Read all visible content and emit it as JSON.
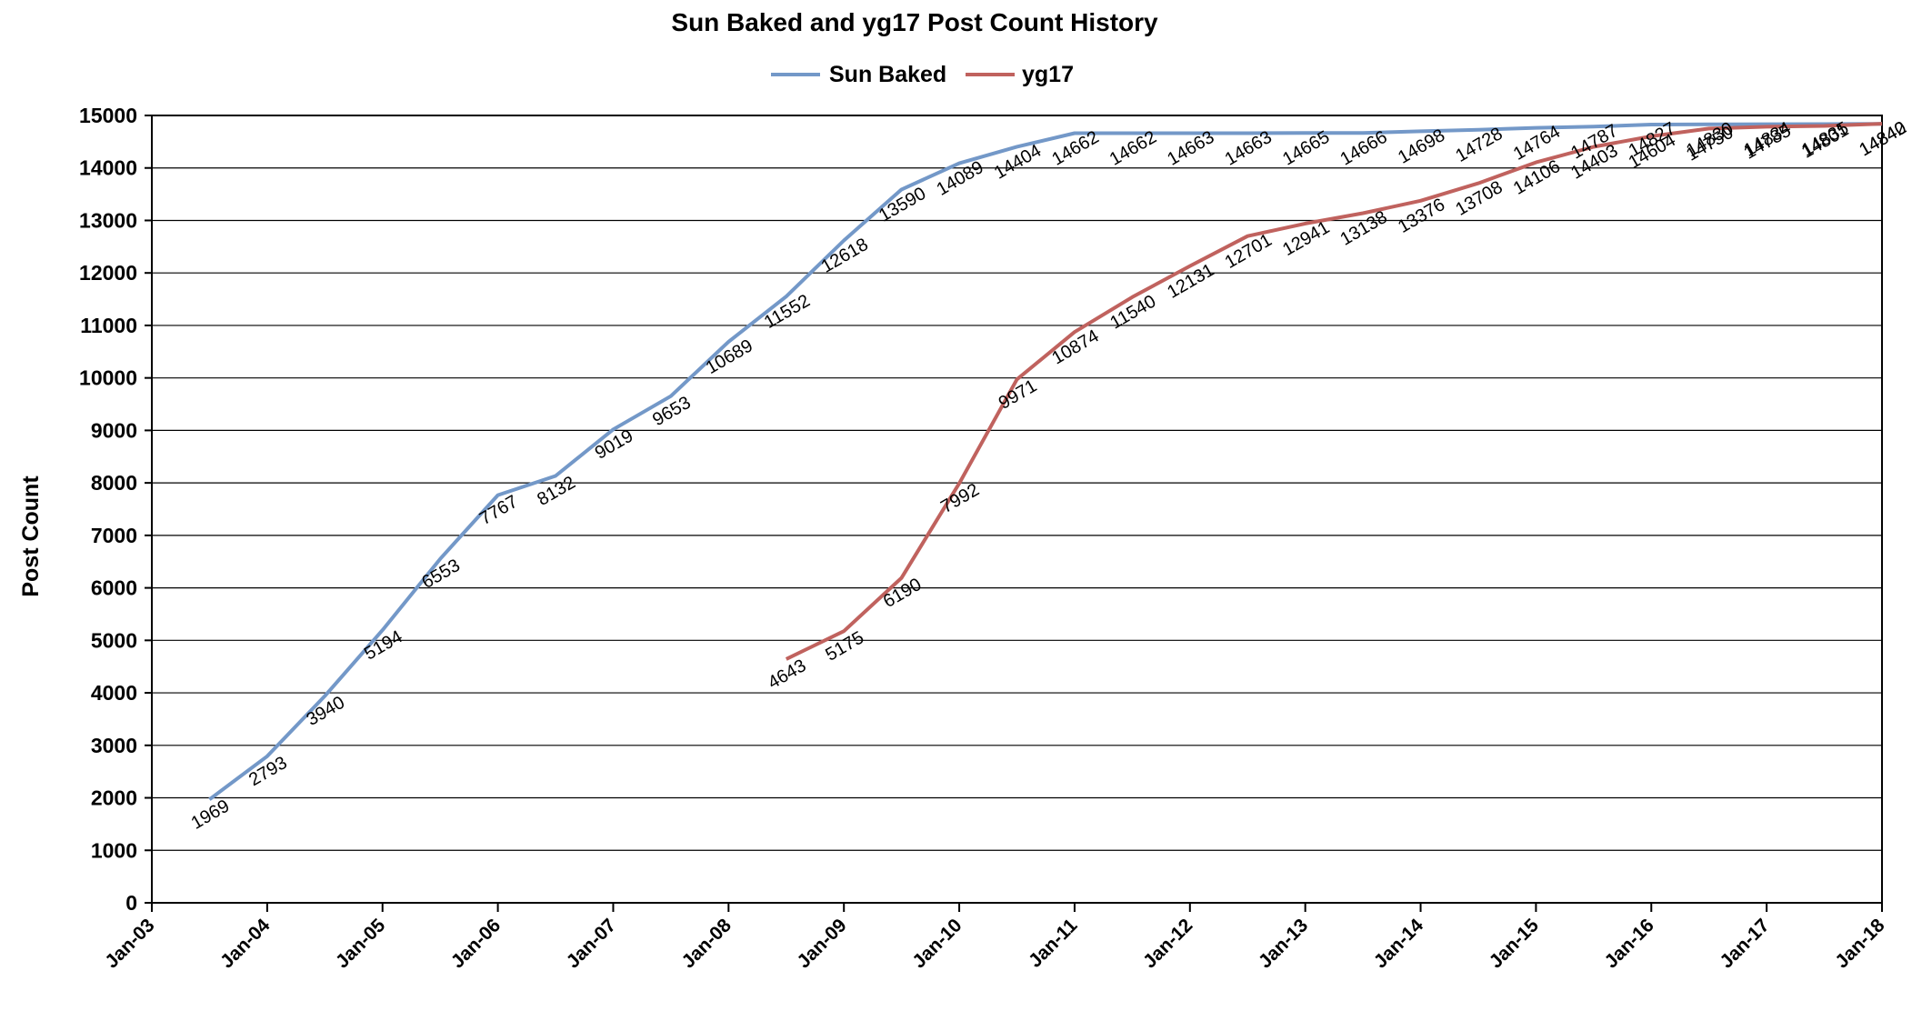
{
  "chart_data": {
    "type": "line",
    "title": "Sun Baked and yg17 Post Count History",
    "xlabel": "",
    "ylabel": "Post Count",
    "ylim": [
      0,
      15000
    ],
    "yticks": [
      "0",
      "1000",
      "2000",
      "3000",
      "4000",
      "5000",
      "6000",
      "7000",
      "8000",
      "9000",
      "10000",
      "11000",
      "12000",
      "13000",
      "14000",
      "15000"
    ],
    "xlim": [
      "2003-01",
      "2018-01"
    ],
    "xticks": [
      {
        "date": "2003-01",
        "label": "Jan-03"
      },
      {
        "date": "2004-01",
        "label": "Jan-04"
      },
      {
        "date": "2005-01",
        "label": "Jan-05"
      },
      {
        "date": "2006-01",
        "label": "Jan-06"
      },
      {
        "date": "2007-01",
        "label": "Jan-07"
      },
      {
        "date": "2008-01",
        "label": "Jan-08"
      },
      {
        "date": "2009-01",
        "label": "Jan-09"
      },
      {
        "date": "2010-01",
        "label": "Jan-10"
      },
      {
        "date": "2011-01",
        "label": "Jan-11"
      },
      {
        "date": "2012-01",
        "label": "Jan-12"
      },
      {
        "date": "2013-01",
        "label": "Jan-13"
      },
      {
        "date": "2014-01",
        "label": "Jan-14"
      },
      {
        "date": "2015-01",
        "label": "Jan-15"
      },
      {
        "date": "2016-01",
        "label": "Jan-16"
      },
      {
        "date": "2017-01",
        "label": "Jan-17"
      },
      {
        "date": "2018-01",
        "label": "Jan-18"
      }
    ],
    "grid": {
      "horizontal": true,
      "vertical": false
    },
    "legend": "top-center",
    "series": [
      {
        "name": "Sun Baked",
        "color": "#7398c8",
        "x": [
          "2003-07",
          "2004-01",
          "2004-07",
          "2005-01",
          "2005-07",
          "2006-01",
          "2006-07",
          "2007-01",
          "2007-07",
          "2008-01",
          "2008-07",
          "2009-01",
          "2009-07",
          "2010-01",
          "2010-07",
          "2011-01",
          "2011-07",
          "2012-01",
          "2012-07",
          "2013-01",
          "2013-07",
          "2014-01",
          "2014-07",
          "2015-01",
          "2015-07",
          "2016-01",
          "2016-07",
          "2017-01",
          "2017-07",
          "2018-01"
        ],
        "values": [
          1969,
          2793,
          3940,
          5194,
          6553,
          7767,
          8132,
          9019,
          9653,
          10689,
          11552,
          12618,
          13590,
          14089,
          14404,
          14662,
          14662,
          14663,
          14663,
          14665,
          14666,
          14698,
          14728,
          14764,
          14787,
          14827,
          14830,
          14834,
          14835,
          14840
        ],
        "labels": [
          "1969",
          "2793",
          "3940",
          "5194",
          "6553",
          "7767",
          "8132",
          "9019",
          "9653",
          "10689",
          "11552",
          "12618",
          "13590",
          "14089",
          "14404",
          "14662",
          "14662",
          "14663",
          "14663",
          "14665",
          "14666",
          "14698",
          "14728",
          "14764",
          "14787",
          "14827",
          "14830",
          "14834",
          "14835",
          "14840"
        ]
      },
      {
        "name": "yg17",
        "color": "#c0625e",
        "x": [
          "2008-07",
          "2009-01",
          "2009-07",
          "2010-01",
          "2010-07",
          "2011-01",
          "2011-07",
          "2012-01",
          "2012-07",
          "2013-01",
          "2013-07",
          "2014-01",
          "2014-07",
          "2015-01",
          "2015-07",
          "2016-01",
          "2016-07",
          "2017-01",
          "2017-07",
          "2018-01"
        ],
        "values": [
          4643,
          5175,
          6190,
          7992,
          9971,
          10874,
          11540,
          12131,
          12701,
          12941,
          13138,
          13376,
          13708,
          14106,
          14403,
          14604,
          14750,
          14785,
          14801,
          14842
        ],
        "labels": [
          "4643",
          "5175",
          "6190",
          "7992",
          "9971",
          "10874",
          "11540",
          "12131",
          "12701",
          "12941",
          "13138",
          "13376",
          "13708",
          "14106",
          "14403",
          "14604",
          "14750",
          "14785",
          "14801",
          "14842"
        ]
      }
    ]
  }
}
